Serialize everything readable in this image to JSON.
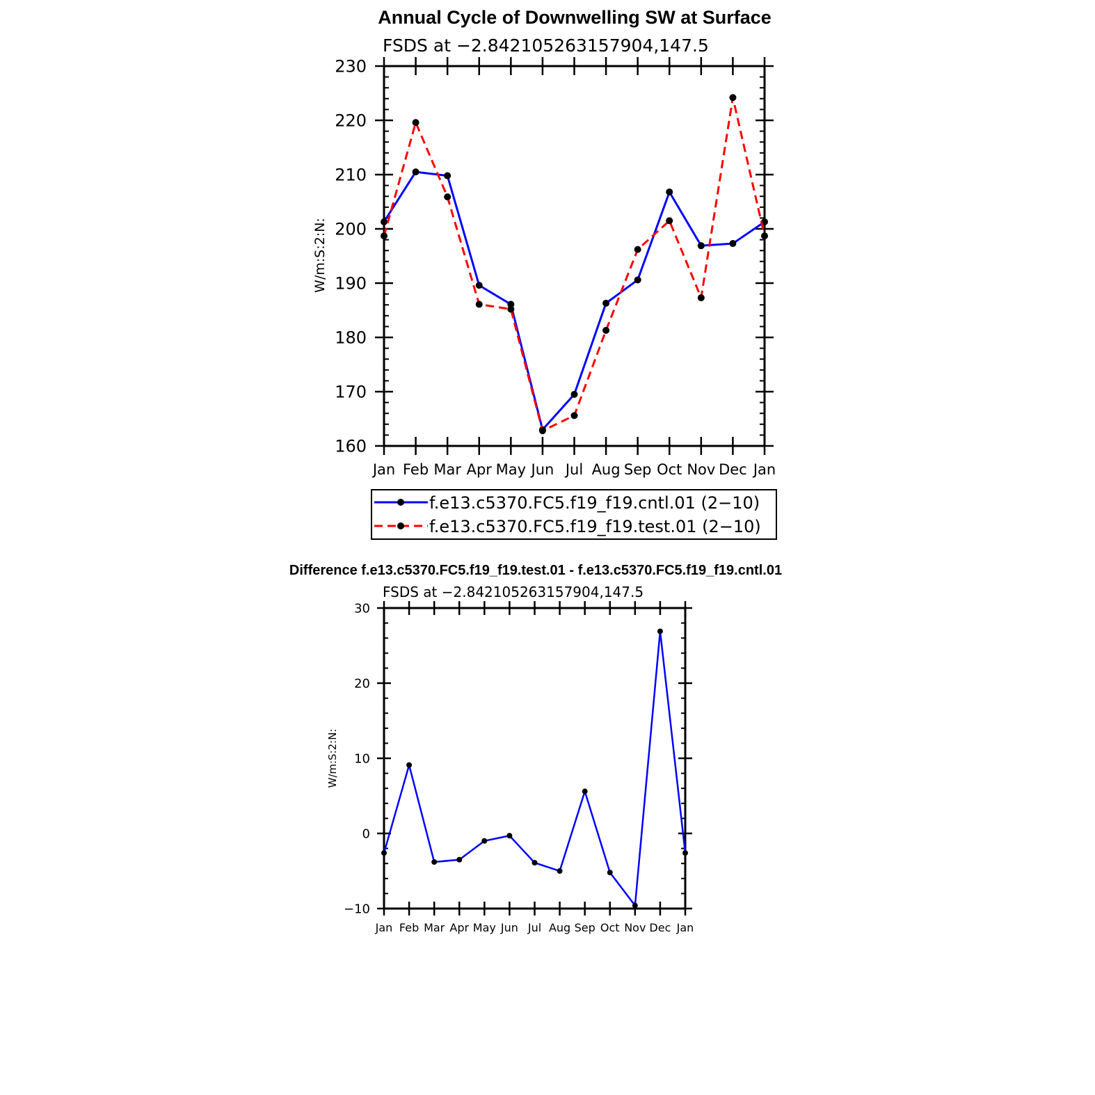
{
  "chart_data": [
    {
      "type": "line",
      "title": "Annual Cycle of Downwelling SW at Surface",
      "subtitle": "FSDS at −2.842105263157904,147.5",
      "xlabel": "",
      "ylabel": "W/m:S:2:N:",
      "categories": [
        "Jan",
        "Feb",
        "Mar",
        "Apr",
        "May",
        "Jun",
        "Jul",
        "Aug",
        "Sep",
        "Oct",
        "Nov",
        "Dec",
        "Jan"
      ],
      "ylim": [
        160,
        230
      ],
      "yticks": [
        "160",
        "170",
        "180",
        "190",
        "200",
        "210",
        "220",
        "230"
      ],
      "series": [
        {
          "name": "f.e13.c5370.FC5.f19_f19.cntl.01 (2−10)",
          "color": "#0000ff",
          "dash": "solid",
          "values": [
            201.3,
            210.5,
            209.8,
            189.6,
            186.1,
            163.0,
            169.5,
            186.3,
            190.6,
            206.8,
            196.9,
            197.3,
            201.3
          ]
        },
        {
          "name": "f.e13.c5370.FC5.f19_f19.test.01 (2−10)",
          "color": "#ff0000",
          "dash": "dashed",
          "values": [
            198.7,
            219.6,
            205.9,
            186.1,
            185.2,
            162.8,
            165.6,
            181.3,
            196.2,
            201.5,
            187.3,
            224.2,
            198.7
          ]
        }
      ],
      "legend": "bottom"
    },
    {
      "type": "line",
      "title": "Difference f.e13.c5370.FC5.f19_f19.test.01 - f.e13.c5370.FC5.f19_f19.cntl.01",
      "subtitle": "FSDS at −2.842105263157904,147.5",
      "xlabel": "",
      "ylabel": "W/m:S:2:N:",
      "categories": [
        "Jan",
        "Feb",
        "Mar",
        "Apr",
        "May",
        "Jun",
        "Jul",
        "Aug",
        "Sep",
        "Oct",
        "Nov",
        "Dec",
        "Jan"
      ],
      "ylim": [
        -10,
        30
      ],
      "yticks": [
        "−10",
        "0",
        "10",
        "20",
        "30"
      ],
      "series": [
        {
          "color": "#0000ff",
          "dash": "solid",
          "values": [
            -2.6,
            9.1,
            -3.8,
            -3.5,
            -1.0,
            -0.3,
            -3.9,
            -5.0,
            5.6,
            -5.2,
            -9.6,
            26.9,
            -2.6
          ]
        }
      ]
    }
  ]
}
